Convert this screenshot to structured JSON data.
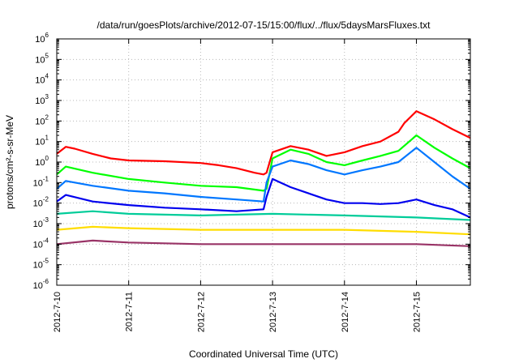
{
  "chart_data": {
    "type": "line",
    "title": "/data/run/goesPlots/archive/2012-07-15/15:00/flux/../flux/5daysMarsFluxes.txt",
    "xlabel": "Coordinated Universal Time (UTC)",
    "ylabel": "protons/cm²-s-sr-MeV",
    "y_scale": "log",
    "ylim": [
      1e-06,
      1000000.0
    ],
    "xlim": [
      "2012-07-10 00:00",
      "2012-07-15 18:00"
    ],
    "grid": true,
    "x_tick_labels": [
      "2012-7-10",
      "2012-7-11",
      "2012-7-12",
      "2012-7-13",
      "2012-7-14",
      "2012-7-15"
    ],
    "y_tick_labels": [
      {
        "base": "10",
        "exp": "-6"
      },
      {
        "base": "10",
        "exp": "-5"
      },
      {
        "base": "10",
        "exp": "-4"
      },
      {
        "base": "10",
        "exp": "-3"
      },
      {
        "base": "10",
        "exp": "-2"
      },
      {
        "base": "10",
        "exp": "-1"
      },
      {
        "base": "10",
        "exp": "0"
      },
      {
        "base": "10",
        "exp": "1"
      },
      {
        "base": "10",
        "exp": "2"
      },
      {
        "base": "10",
        "exp": "3"
      },
      {
        "base": "10",
        "exp": "4"
      },
      {
        "base": "10",
        "exp": "5"
      },
      {
        "base": "10",
        "exp": "6"
      }
    ],
    "series": [
      {
        "color": "#ff0000",
        "x": [
          "2012-07-10 00:00",
          "2012-07-10 03:00",
          "2012-07-10 06:00",
          "2012-07-10 12:00",
          "2012-07-10 18:00",
          "2012-07-11 00:00",
          "2012-07-11 12:00",
          "2012-07-12 00:00",
          "2012-07-12 06:00",
          "2012-07-12 12:00",
          "2012-07-12 18:00",
          "2012-07-12 21:00",
          "2012-07-12 22:00",
          "2012-07-13 00:00",
          "2012-07-13 06:00",
          "2012-07-13 12:00",
          "2012-07-13 18:00",
          "2012-07-14 00:00",
          "2012-07-14 06:00",
          "2012-07-14 12:00",
          "2012-07-14 18:00",
          "2012-07-14 20:00",
          "2012-07-15 00:00",
          "2012-07-15 06:00",
          "2012-07-15 12:00",
          "2012-07-15 18:00"
        ],
        "y": [
          2.5,
          5.5,
          4.5,
          2.5,
          1.5,
          1.2,
          1.1,
          0.9,
          0.7,
          0.5,
          0.3,
          0.25,
          0.3,
          3.0,
          6.0,
          4.0,
          2.0,
          3.0,
          6.0,
          10.0,
          30.0,
          80.0,
          300.0,
          120.0,
          40.0,
          15.0
        ]
      },
      {
        "color": "#00ff00",
        "x": [
          "2012-07-10 00:00",
          "2012-07-10 03:00",
          "2012-07-10 12:00",
          "2012-07-11 00:00",
          "2012-07-11 12:00",
          "2012-07-12 00:00",
          "2012-07-12 12:00",
          "2012-07-12 21:00",
          "2012-07-12 22:00",
          "2012-07-13 00:00",
          "2012-07-13 06:00",
          "2012-07-13 12:00",
          "2012-07-13 18:00",
          "2012-07-14 00:00",
          "2012-07-14 06:00",
          "2012-07-14 12:00",
          "2012-07-14 18:00",
          "2012-07-15 00:00",
          "2012-07-15 06:00",
          "2012-07-15 12:00",
          "2012-07-15 18:00"
        ],
        "y": [
          0.25,
          0.6,
          0.3,
          0.15,
          0.1,
          0.07,
          0.06,
          0.04,
          0.05,
          1.5,
          4.0,
          2.5,
          1.0,
          0.7,
          1.2,
          2.0,
          3.5,
          20.0,
          5.0,
          1.5,
          0.5
        ]
      },
      {
        "color": "#0077ff",
        "x": [
          "2012-07-10 00:00",
          "2012-07-10 03:00",
          "2012-07-10 12:00",
          "2012-07-11 00:00",
          "2012-07-11 12:00",
          "2012-07-12 00:00",
          "2012-07-12 12:00",
          "2012-07-12 21:00",
          "2012-07-12 22:00",
          "2012-07-13 00:00",
          "2012-07-13 06:00",
          "2012-07-13 12:00",
          "2012-07-13 18:00",
          "2012-07-14 00:00",
          "2012-07-14 06:00",
          "2012-07-14 12:00",
          "2012-07-14 18:00",
          "2012-07-15 00:00",
          "2012-07-15 06:00",
          "2012-07-15 12:00",
          "2012-07-15 18:00"
        ],
        "y": [
          0.05,
          0.12,
          0.07,
          0.04,
          0.03,
          0.02,
          0.015,
          0.012,
          0.1,
          0.6,
          1.2,
          0.8,
          0.4,
          0.25,
          0.4,
          0.6,
          1.0,
          5.0,
          1.0,
          0.2,
          0.05
        ]
      },
      {
        "color": "#0000ee",
        "x": [
          "2012-07-10 00:00",
          "2012-07-10 03:00",
          "2012-07-10 12:00",
          "2012-07-11 00:00",
          "2012-07-11 12:00",
          "2012-07-12 00:00",
          "2012-07-12 12:00",
          "2012-07-12 21:00",
          "2012-07-12 22:00",
          "2012-07-13 00:00",
          "2012-07-13 06:00",
          "2012-07-13 12:00",
          "2012-07-13 18:00",
          "2012-07-14 00:00",
          "2012-07-14 06:00",
          "2012-07-14 12:00",
          "2012-07-14 18:00",
          "2012-07-15 00:00",
          "2012-07-15 06:00",
          "2012-07-15 12:00",
          "2012-07-15 18:00"
        ],
        "y": [
          0.012,
          0.025,
          0.012,
          0.008,
          0.006,
          0.005,
          0.004,
          0.005,
          0.02,
          0.15,
          0.06,
          0.03,
          0.015,
          0.01,
          0.01,
          0.009,
          0.01,
          0.015,
          0.008,
          0.005,
          0.002
        ]
      },
      {
        "color": "#00cc99",
        "x": [
          "2012-07-10 00:00",
          "2012-07-10 12:00",
          "2012-07-11 00:00",
          "2012-07-12 00:00",
          "2012-07-13 00:00",
          "2012-07-14 00:00",
          "2012-07-15 00:00",
          "2012-07-15 18:00"
        ],
        "y": [
          0.003,
          0.004,
          0.003,
          0.0025,
          0.003,
          0.0025,
          0.002,
          0.0015
        ]
      },
      {
        "color": "#ffdd00",
        "x": [
          "2012-07-10 00:00",
          "2012-07-10 12:00",
          "2012-07-11 00:00",
          "2012-07-12 00:00",
          "2012-07-13 00:00",
          "2012-07-14 00:00",
          "2012-07-15 00:00",
          "2012-07-15 18:00"
        ],
        "y": [
          0.0005,
          0.0007,
          0.0006,
          0.0005,
          0.0005,
          0.0005,
          0.0004,
          0.0003
        ]
      },
      {
        "color": "#993366",
        "x": [
          "2012-07-10 00:00",
          "2012-07-10 12:00",
          "2012-07-11 00:00",
          "2012-07-12 00:00",
          "2012-07-13 00:00",
          "2012-07-14 00:00",
          "2012-07-15 00:00",
          "2012-07-15 18:00"
        ],
        "y": [
          0.0001,
          0.00015,
          0.00012,
          0.0001,
          0.0001,
          0.0001,
          0.0001,
          8e-05
        ]
      }
    ]
  }
}
